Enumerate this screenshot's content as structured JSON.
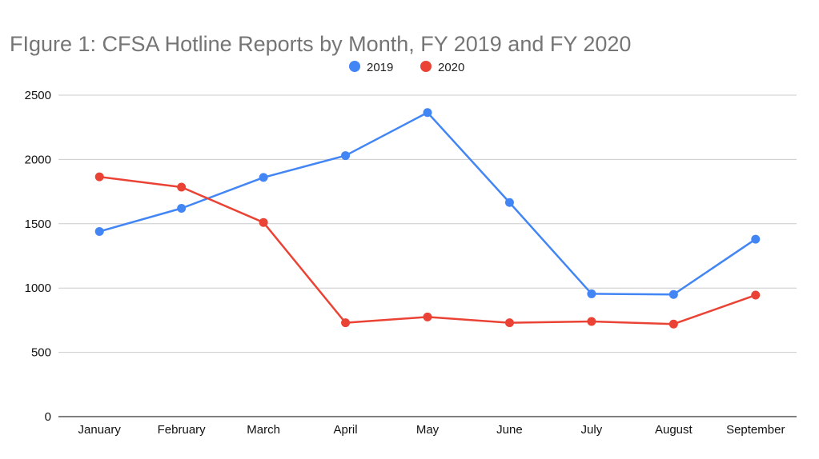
{
  "chart_data": {
    "type": "line",
    "title": "FIgure 1: CFSA Hotline Reports by Month, FY 2019 and FY 2020",
    "xlabel": "",
    "ylabel": "",
    "categories": [
      "January",
      "February",
      "March",
      "April",
      "May",
      "June",
      "July",
      "August",
      "September"
    ],
    "ylim": [
      0,
      2500
    ],
    "yticks": [
      0,
      500,
      1000,
      1500,
      2000,
      2500
    ],
    "grid": true,
    "legend_position": "top-center",
    "series": [
      {
        "name": "2019",
        "color": "#4285f4",
        "values": [
          1440,
          1620,
          1860,
          2030,
          2365,
          1665,
          955,
          950,
          1380
        ]
      },
      {
        "name": "2020",
        "color": "#ea4335",
        "values": [
          1865,
          1785,
          1510,
          730,
          775,
          730,
          740,
          720,
          945
        ]
      }
    ]
  }
}
